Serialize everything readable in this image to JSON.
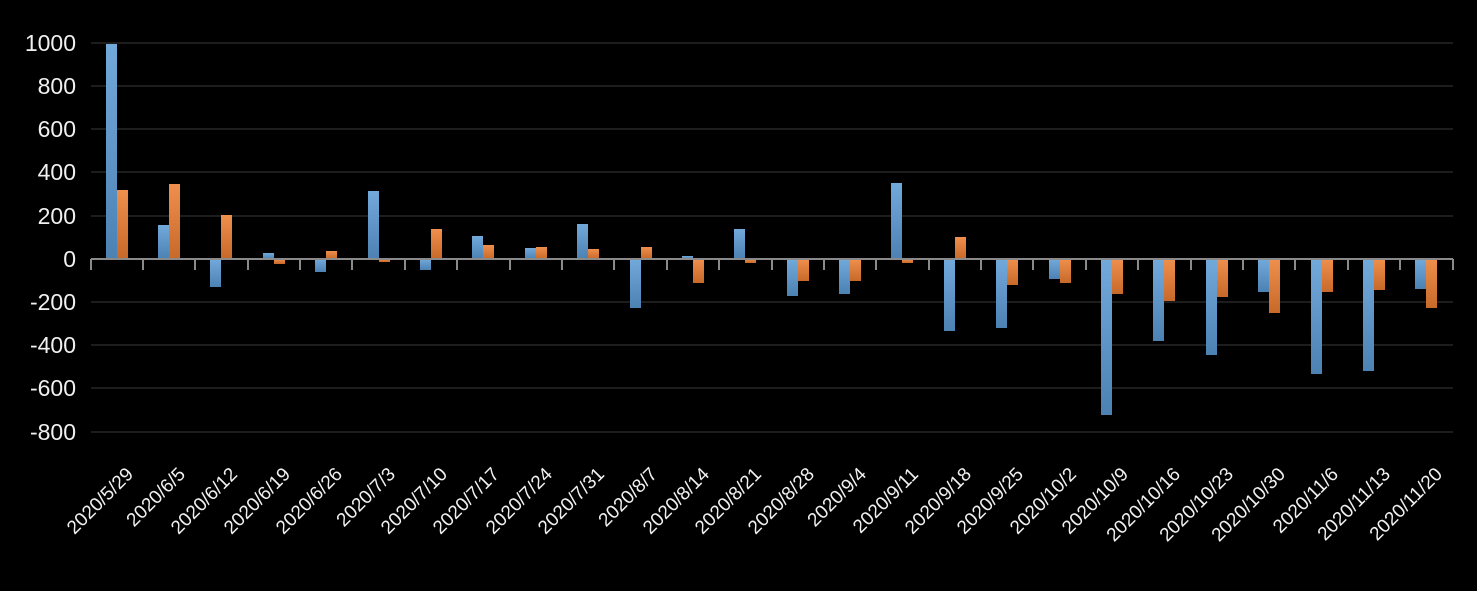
{
  "chart_data": {
    "type": "bar",
    "orientation": "vertical",
    "background_color": "#000000",
    "gridline_color": "#1d1d1d",
    "axis_color": "#8a8a8a",
    "label_color": "#f0f0f0",
    "legend": "none",
    "grid": true,
    "categories": [
      "2020/5/29",
      "2020/6/5",
      "2020/6/12",
      "2020/6/19",
      "2020/6/26",
      "2020/7/3",
      "2020/7/10",
      "2020/7/17",
      "2020/7/24",
      "2020/7/31",
      "2020/8/7",
      "2020/8/14",
      "2020/8/21",
      "2020/8/28",
      "2020/9/4",
      "2020/9/11",
      "2020/9/18",
      "2020/9/25",
      "2020/10/2",
      "2020/10/9",
      "2020/10/16",
      "2020/10/23",
      "2020/10/30",
      "2020/11/6",
      "2020/11/13",
      "2020/11/20"
    ],
    "series": [
      {
        "name": "series_blue",
        "color": "#5B9BD5",
        "values": [
          995,
          155,
          -130,
          25,
          -60,
          315,
          -50,
          105,
          50,
          160,
          -230,
          15,
          140,
          -170,
          -165,
          350,
          -335,
          -320,
          -95,
          -725,
          -380,
          -445,
          -155,
          -535,
          -520,
          -140
        ]
      },
      {
        "name": "series_orange",
        "color": "#ED7D31",
        "values": [
          320,
          345,
          205,
          -25,
          35,
          -15,
          140,
          65,
          55,
          45,
          55,
          -110,
          -20,
          -105,
          -105,
          -20,
          100,
          -120,
          -110,
          -165,
          -195,
          -175,
          -250,
          -155,
          -145,
          -230
        ]
      }
    ],
    "y_axis": {
      "min": -800,
      "max": 1000,
      "step": 200,
      "tick_labels": [
        "1000",
        "800",
        "600",
        "400",
        "200",
        "0",
        "-200",
        "-400",
        "-600",
        "-800"
      ]
    }
  }
}
